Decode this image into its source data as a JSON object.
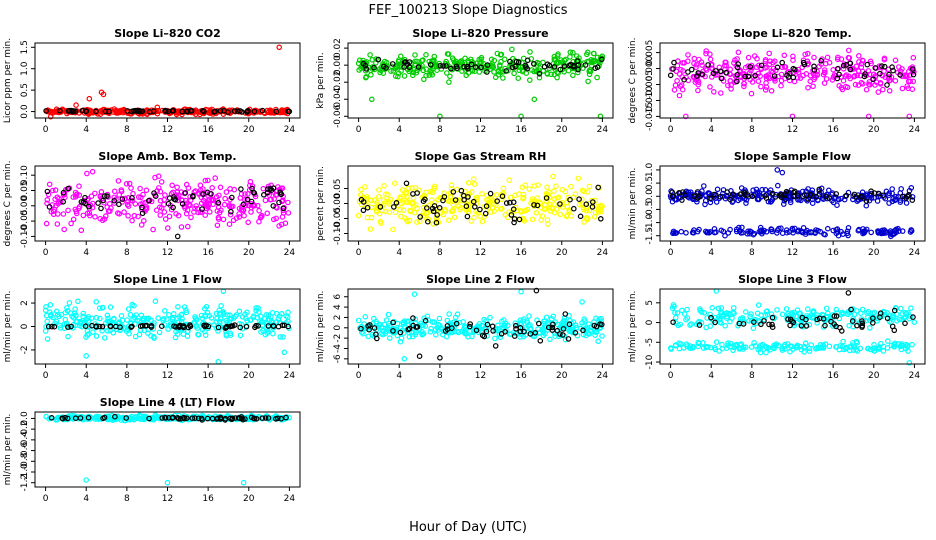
{
  "figure": {
    "title": "FEF_100213  Slope Diagnostics",
    "xlabel": "Hour of Day (UTC)"
  },
  "chart_data": [
    {
      "type": "scatter",
      "title": "Slope Li–820 CO2",
      "ylabel": "Licor ppm per min.",
      "xlim": [
        0,
        24
      ],
      "xticks": [
        0,
        4,
        8,
        12,
        16,
        20,
        24
      ],
      "ylim": [
        -0.15,
        1.6
      ],
      "yticks": [
        0.0,
        0.5,
        1.0,
        1.5
      ],
      "ytick_labels": [
        "0.0",
        "0.5",
        "1.0",
        "1.5"
      ],
      "series": [
        {
          "color": "#ff0000",
          "band": [
            -0.08,
            0.08
          ],
          "n": 320,
          "outliers": [
            [
              3.0,
              0.15
            ],
            [
              4.3,
              0.3
            ],
            [
              5.5,
              0.45
            ],
            [
              5.7,
              0.4
            ],
            [
              11.0,
              0.1
            ],
            [
              23.0,
              1.5
            ],
            [
              0.5,
              -0.12
            ]
          ]
        },
        {
          "color": "#000000",
          "band": [
            -0.02,
            0.04
          ],
          "n": 60,
          "outliers": []
        }
      ]
    },
    {
      "type": "scatter",
      "title": "Slope Li–820 Pressure",
      "ylabel": "kPa per min.",
      "xlim": [
        0,
        24
      ],
      "xticks": [
        0,
        4,
        8,
        12,
        16,
        20,
        24
      ],
      "ylim": [
        -0.062,
        0.026
      ],
      "yticks": [
        -0.06,
        -0.04,
        -0.02,
        0.0,
        0.02
      ],
      "ytick_labels": [
        "-0.06",
        "-0.04",
        "-0.02",
        "0.00",
        "0.02"
      ],
      "series": [
        {
          "color": "#00cc00",
          "band": [
            -0.022,
            0.02
          ],
          "n": 320,
          "outliers": [
            [
              8.0,
              -0.06
            ],
            [
              16.0,
              -0.06
            ],
            [
              23.8,
              -0.06
            ],
            [
              1.3,
              -0.04
            ],
            [
              17.3,
              -0.04
            ]
          ]
        },
        {
          "color": "#000000",
          "band": [
            -0.012,
            0.01
          ],
          "n": 60,
          "outliers": []
        }
      ]
    },
    {
      "type": "scatter",
      "title": "Slope Li–820 Temp.",
      "ylabel": "degrees C per min.",
      "xlim": [
        0,
        24
      ],
      "xticks": [
        0,
        4,
        8,
        12,
        16,
        20,
        24
      ],
      "ylim": [
        -0.0155,
        0.008
      ],
      "yticks": [
        -0.015,
        -0.01,
        -0.005,
        0.0,
        0.005
      ],
      "ytick_labels": [
        "-0.015",
        "-0.010",
        "-0.005",
        "0.000",
        "0.005"
      ],
      "series": [
        {
          "color": "#ff00ff",
          "band": [
            -0.01,
            0.007
          ],
          "n": 320,
          "outliers": [
            [
              1.5,
              -0.015
            ],
            [
              12.0,
              -0.015
            ],
            [
              19.5,
              -0.015
            ],
            [
              23.5,
              -0.015
            ]
          ]
        },
        {
          "color": "#000000",
          "band": [
            -0.006,
            0.004
          ],
          "n": 60,
          "outliers": []
        }
      ]
    },
    {
      "type": "scatter",
      "title": "Slope Amb. Box Temp.",
      "ylabel": "degrees C per min.",
      "xlim": [
        0,
        24
      ],
      "xticks": [
        0,
        4,
        8,
        12,
        16,
        20,
        24
      ],
      "ylim": [
        -0.115,
        0.13
      ],
      "yticks": [
        -0.1,
        -0.05,
        0.0,
        0.05,
        0.1
      ],
      "ytick_labels": [
        "-0.10",
        "-0.05",
        "0.00",
        "0.05",
        "0.10"
      ],
      "series": [
        {
          "color": "#ff00ff",
          "band": [
            -0.1,
            0.12
          ],
          "n": 320,
          "outliers": []
        },
        {
          "color": "#000000",
          "band": [
            -0.05,
            0.09
          ],
          "n": 60,
          "outliers": [
            [
              13.0,
              -0.1
            ]
          ]
        }
      ]
    },
    {
      "type": "scatter",
      "title": "Slope Gas Stream RH",
      "ylabel": "percent per min.",
      "xlim": [
        0,
        24
      ],
      "xticks": [
        0,
        4,
        8,
        12,
        16,
        20,
        24
      ],
      "ylim": [
        -0.125,
        0.125
      ],
      "yticks": [
        -0.1,
        -0.05,
        0.0,
        0.05
      ],
      "ytick_labels": [
        "-0.10",
        "-0.05",
        "0.00",
        "0.05"
      ],
      "series": [
        {
          "color": "#ffff00",
          "band": [
            -0.1,
            0.1
          ],
          "n": 320,
          "outliers": []
        },
        {
          "color": "#000000",
          "band": [
            -0.09,
            0.08
          ],
          "n": 60,
          "outliers": []
        }
      ]
    },
    {
      "type": "scatter",
      "title": "Slope Sample Flow",
      "ylabel": "ml/min per min.",
      "xlim": [
        0,
        24
      ],
      "xticks": [
        0,
        4,
        8,
        12,
        16,
        20,
        24
      ],
      "ylim": [
        -1.7,
        1.15
      ],
      "yticks": [
        -1.5,
        -1.0,
        -0.5,
        0.0,
        0.5,
        1.0
      ],
      "ytick_labels": [
        "-1.5",
        "-1.0",
        "-0.5",
        "0.0",
        "0.5",
        "1.0"
      ],
      "series": [
        {
          "color": "#0000cc",
          "band": [
            -0.4,
            0.45
          ],
          "n": 240,
          "outliers": [
            [
              11.0,
              0.9
            ],
            [
              10.5,
              1.0
            ]
          ]
        },
        {
          "color": "#0000cc",
          "band": [
            -1.55,
            -1.15
          ],
          "n": 140,
          "outliers": []
        },
        {
          "color": "#000000",
          "band": [
            -0.25,
            0.35
          ],
          "n": 60,
          "outliers": []
        }
      ]
    },
    {
      "type": "scatter",
      "title": "Slope Line 1 Flow",
      "ylabel": "ml/min per min.",
      "xlim": [
        0,
        24
      ],
      "xticks": [
        0,
        4,
        8,
        12,
        16,
        20,
        24
      ],
      "ylim": [
        -3.2,
        3.2
      ],
      "yticks": [
        -2,
        0,
        2
      ],
      "ytick_labels": [
        "-2",
        "0",
        "2"
      ],
      "series": [
        {
          "color": "#00ffff",
          "band": [
            -1.5,
            2.5
          ],
          "n": 320,
          "outliers": [
            [
              4.0,
              -2.5
            ],
            [
              17.0,
              -3.0
            ],
            [
              23.5,
              -2.2
            ],
            [
              17.5,
              3.0
            ]
          ]
        },
        {
          "color": "#000000",
          "band": [
            -0.2,
            0.2
          ],
          "n": 60,
          "outliers": []
        }
      ]
    },
    {
      "type": "scatter",
      "title": "Slope Line 2 Flow",
      "ylabel": "ml/min per min.",
      "xlim": [
        0,
        24
      ],
      "xticks": [
        0,
        4,
        8,
        12,
        16,
        20,
        24
      ],
      "ylim": [
        -7,
        7.5
      ],
      "yticks": [
        -6,
        -4,
        -2,
        0,
        2,
        4,
        6
      ],
      "ytick_labels": [
        "-6",
        "-4",
        "-2",
        "0",
        "2",
        "4",
        "6"
      ],
      "series": [
        {
          "color": "#00ffff",
          "band": [
            -3.0,
            3.0
          ],
          "n": 320,
          "outliers": [
            [
              4.5,
              -6.0
            ],
            [
              5.5,
              6.5
            ],
            [
              16.0,
              7.0
            ],
            [
              22.0,
              5.0
            ]
          ]
        },
        {
          "color": "#000000",
          "band": [
            -3.5,
            3.0
          ],
          "n": 60,
          "outliers": [
            [
              6.0,
              -5.5
            ],
            [
              8.0,
              -5.8
            ],
            [
              17.5,
              7.2
            ],
            [
              13.5,
              -3.5
            ]
          ]
        }
      ]
    },
    {
      "type": "scatter",
      "title": "Slope Line 3 Flow",
      "ylabel": "ml/min per min.",
      "xlim": [
        0,
        24
      ],
      "xticks": [
        0,
        4,
        8,
        12,
        16,
        20,
        24
      ],
      "ylim": [
        -10.5,
        8.5
      ],
      "yticks": [
        -10,
        -5,
        0,
        5
      ],
      "ytick_labels": [
        "-10",
        "-5",
        "0",
        "5"
      ],
      "series": [
        {
          "color": "#00ffff",
          "band": [
            -2.0,
            5.0
          ],
          "n": 220,
          "outliers": [
            [
              4.5,
              8.0
            ]
          ]
        },
        {
          "color": "#00ffff",
          "band": [
            -8.0,
            -4.5
          ],
          "n": 160,
          "outliers": [
            [
              23.5,
              -10.2
            ]
          ]
        },
        {
          "color": "#000000",
          "band": [
            -3.0,
            3.5
          ],
          "n": 50,
          "outliers": [
            [
              17.5,
              7.5
            ]
          ]
        }
      ]
    },
    {
      "type": "scatter",
      "title": "Slope Line 4 (LT) Flow",
      "ylabel": "ml/min per min.",
      "xlim": [
        0,
        24
      ],
      "xticks": [
        0,
        4,
        8,
        12,
        16,
        20,
        24
      ],
      "ylim": [
        -1.28,
        0.12
      ],
      "yticks": [
        -1.2,
        -1.0,
        -0.8,
        -0.6,
        -0.4,
        -0.2,
        0.0
      ],
      "ytick_labels": [
        "-1.2",
        "-1.0",
        "-0.8",
        "-0.6",
        "-0.4",
        "-0.2",
        "0.0"
      ],
      "series": [
        {
          "color": "#00ffff",
          "band": [
            -0.05,
            0.07
          ],
          "n": 320,
          "outliers": [
            [
              4.0,
              -1.15
            ],
            [
              12.0,
              -1.2
            ],
            [
              19.5,
              -1.2
            ]
          ]
        },
        {
          "color": "#000000",
          "band": [
            -0.04,
            0.04
          ],
          "n": 60,
          "outliers": []
        }
      ]
    }
  ]
}
